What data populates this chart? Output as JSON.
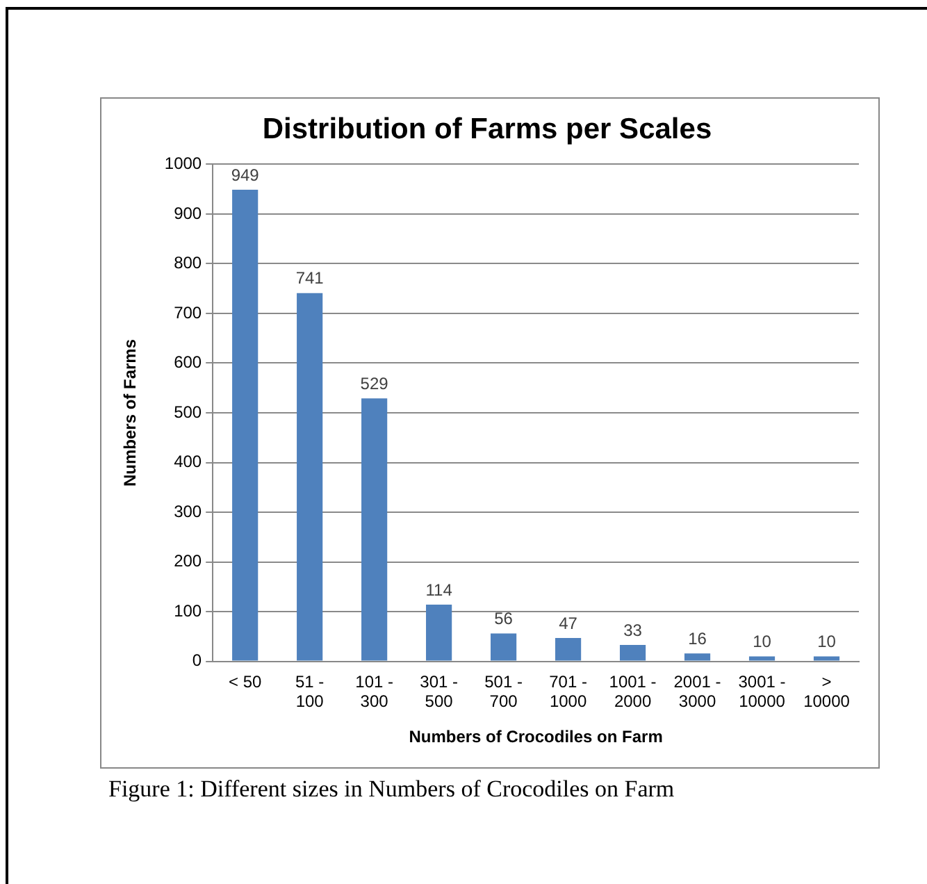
{
  "chart_data": {
    "type": "bar",
    "title": "Distribution of Farms per Scales",
    "xlabel": "Numbers of Crocodiles on Farm",
    "ylabel": "Numbers of Farms",
    "categories": [
      "< 50",
      "51 - 100",
      "101 - 300",
      "301 - 500",
      "501 - 700",
      "701 - 1000",
      "1001 - 2000",
      "2001 - 3000",
      "3001 - 10000",
      "> 10000"
    ],
    "values": [
      949,
      741,
      529,
      114,
      56,
      47,
      33,
      16,
      10,
      10
    ],
    "color": "#4f81bd",
    "ylim": [
      0,
      1000
    ],
    "yticks": [
      0,
      100,
      200,
      300,
      400,
      500,
      600,
      700,
      800,
      900,
      1000
    ],
    "grid": "y",
    "legend": false,
    "data_labels": true,
    "annotations": [
      "Figure 1: Different sizes in Numbers of Crocodiles on Farm"
    ]
  }
}
